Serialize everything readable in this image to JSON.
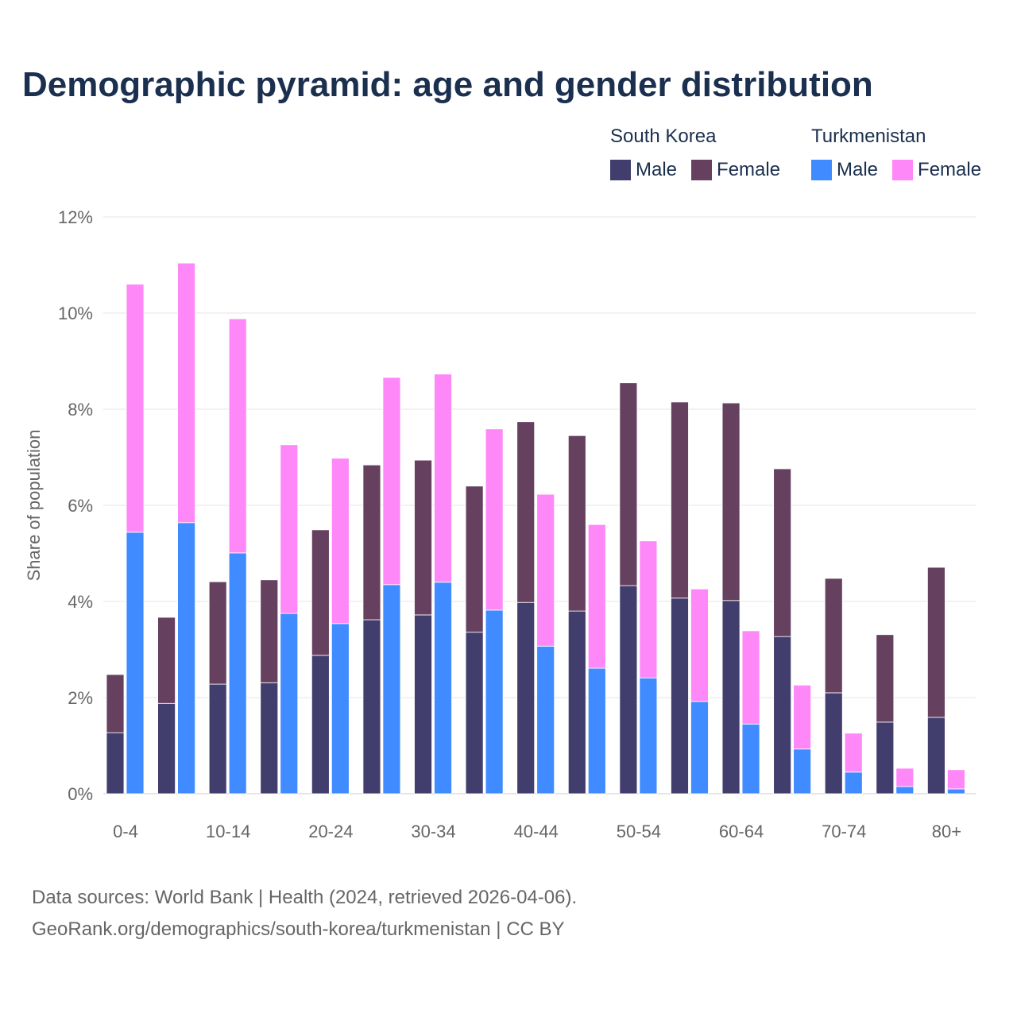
{
  "chart_data": {
    "type": "bar",
    "title": "Demographic pyramid: age and gender distribution",
    "ylabel": "Share of population",
    "xlabel": "",
    "ylim": [
      0,
      12
    ],
    "yticks": [
      "0%",
      "2%",
      "4%",
      "6%",
      "8%",
      "10%",
      "12%"
    ],
    "grid": true,
    "legend_placement": "top-right",
    "categories": [
      "0-4",
      "5-9",
      "10-14",
      "15-19",
      "20-24",
      "25-29",
      "30-34",
      "35-39",
      "40-44",
      "45-49",
      "50-54",
      "55-59",
      "60-64",
      "65-69",
      "70-74",
      "75-79",
      "80+"
    ],
    "xtick_labels": [
      "0-4",
      "10-14",
      "20-24",
      "30-34",
      "40-44",
      "50-54",
      "60-64",
      "70-74",
      "80+"
    ],
    "countries": [
      {
        "name": "South Korea",
        "series": [
          {
            "name": "Male",
            "color": "#413e6e",
            "values": [
              1.27,
              1.88,
              2.28,
              2.31,
              2.88,
              3.62,
              3.72,
              3.36,
              3.98,
              3.8,
              4.33,
              4.07,
              4.02,
              3.27,
              2.1,
              1.49,
              1.59
            ]
          },
          {
            "name": "Female",
            "color": "#66405f",
            "values": [
              1.21,
              1.79,
              2.13,
              2.14,
              2.61,
              3.22,
              3.22,
              3.04,
              3.76,
              3.65,
              4.22,
              4.08,
              4.11,
              3.49,
              2.38,
              1.82,
              3.12
            ]
          }
        ]
      },
      {
        "name": "Turkmenistan",
        "series": [
          {
            "name": "Male",
            "color": "#3f8bff",
            "values": [
              5.44,
              5.64,
              5.01,
              3.75,
              3.54,
              4.35,
              4.4,
              3.82,
              3.07,
              2.61,
              2.41,
              1.92,
              1.45,
              0.93,
              0.45,
              0.15,
              0.1
            ]
          },
          {
            "name": "Female",
            "color": "#ff88f8",
            "values": [
              5.16,
              5.4,
              4.87,
              3.51,
              3.44,
              4.31,
              4.33,
              3.77,
              3.16,
              2.99,
              2.85,
              2.34,
              1.94,
              1.33,
              0.81,
              0.38,
              0.4
            ]
          }
        ]
      }
    ]
  },
  "footer": {
    "line1": "Data sources: World Bank | Health (2024, retrieved 2026-04-06).",
    "line2": "GeoRank.org/demographics/south-korea/turkmenistan | CC BY"
  }
}
